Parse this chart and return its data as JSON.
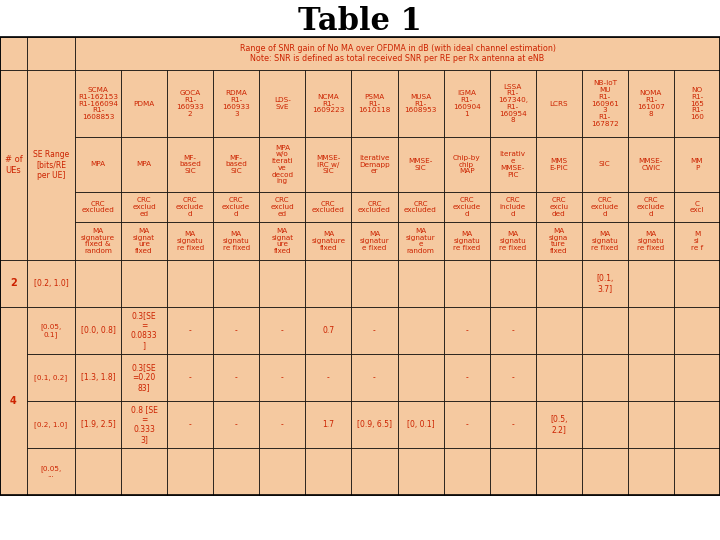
{
  "title": "Table 1",
  "subtitle_line1": "Range of SNR gain of No MA over OFDMA in dB (with ideal channel estimation)",
  "subtitle_line2": "Note: SNR is defined as total received SNR per RE per Rx antenna at eNB",
  "bg_color": "#F5C9A0",
  "text_color": "#CC2200",
  "border_color": "#000000",
  "title_color": "#000000",
  "col_headers_row1": [
    "SCMA\nR1-162153\nR1-166094\nR1-\n1608853",
    "PDMA",
    "GOCA\nR1-\n160933\n2",
    "RDMA\nR1-\n160933\n3",
    "LDS-\nSvE",
    "NCMA\nR1-\n1609223",
    "PSMA\nR1-\n1610118",
    "MUSA\nR1-\n1608953",
    "IGMA\nR1-\n160904\n1",
    "LSSA\nR1-\n167340,\nR1-\n160954\n8",
    "LCRS",
    "NB-IoT\nMU\nR1-\n160961\n3\nR1-\n167872",
    "NOMA\nR1-\n161007\n8",
    "NO\nR1-\n165\nR1-\n160"
  ],
  "col_headers_row2": [
    "MPA",
    "MPA",
    "MF-\nbased\nSIC",
    "MF-\nbased\nSIC",
    "MPA\nw/o\niterati\nve\ndecod\ning",
    "MMSE-\nIRC w/\nSIC",
    "Iterative\nDemapp\ner",
    "MMSE-\nSIC",
    "Chip-by\nchip\nMAP",
    "Iterativ\ne\nMMSE-\nPIC",
    "MMS\nE-PIC",
    "SIC",
    "MMSE-\nCWIC",
    "MM\nP"
  ],
  "col_headers_row3": [
    "CRC\nexcluded",
    "CRC\nexclud\ned",
    "CRC\nexclude\nd",
    "CRC\nexclude\nd",
    "CRC\nexclud\ned",
    "CRC\nexcluded",
    "CRC\nexcluded",
    "CRC\nexcluded",
    "CRC\nexclude\nd",
    "CRC\ninclude\nd",
    "CRC\nexclu\nded",
    "CRC\nexclude\nd",
    "CRC\nexclude\nd",
    "C\nexcl"
  ],
  "col_headers_row4": [
    "MA\nsignature\nfixed &\nrandom",
    "MA\nsignat\nure\nfixed",
    "MA\nsignatu\nre fixed",
    "MA\nsignatu\nre fixed",
    "MA\nsignat\nure\nfixed",
    "MA\nsignature\nfixed",
    "MA\nsignatur\ne fixed",
    "MA\nsignatur\ne\nrandom",
    "MA\nsignatu\nre fixed",
    "MA\nsignatu\nre fixed",
    "MA\nsigna\nture\nfixed",
    "MA\nsignatu\nre fixed",
    "MA\nsignatu\nre fixed",
    "M\nsi\nre f"
  ],
  "left_col0_label": "# of\nUEs",
  "left_col1_label": "SE Range\n[bits/RE\nper UE]",
  "row_groups": [
    {
      "num_ues": "2",
      "rows": [
        {
          "se_range": "[0.2, 1.0]",
          "values": [
            "",
            "",
            "",
            "",
            "",
            "",
            "",
            "",
            "",
            "",
            "",
            "[0.1,\n3.7]",
            "",
            ""
          ]
        }
      ]
    },
    {
      "num_ues": "4",
      "rows": [
        {
          "se_range": "[0.05,\n0.1]",
          "values": [
            "[0.0, 0.8]",
            "0.3[SE\n=\n0.0833\n]",
            "-",
            "-",
            "-",
            "0.7",
            "-",
            "",
            "-",
            "-",
            "",
            "",
            "",
            ""
          ]
        },
        {
          "se_range": "[0.1, 0.2]",
          "values": [
            "[1.3, 1.8]",
            "0.3[SE\n=0.20\n83]",
            "-",
            "-",
            "-",
            "-",
            "-",
            "",
            "-",
            "-",
            "",
            "",
            "",
            ""
          ]
        },
        {
          "se_range": "[0.2, 1.0]",
          "values": [
            "[1.9, 2.5]",
            "0.8 [SE\n=\n0.333\n3]",
            "-",
            "-",
            "-",
            "1.7",
            "[0.9, 6.5]",
            "[0, 0.1]",
            "-",
            "-",
            "[0.5,\n2.2]",
            "",
            "",
            ""
          ]
        },
        {
          "se_range": "[0.05,\n...",
          "values": [
            "",
            "",
            "",
            "",
            "",
            "",
            "",
            "",
            "",
            "",
            "",
            "",
            "",
            ""
          ]
        }
      ]
    }
  ]
}
